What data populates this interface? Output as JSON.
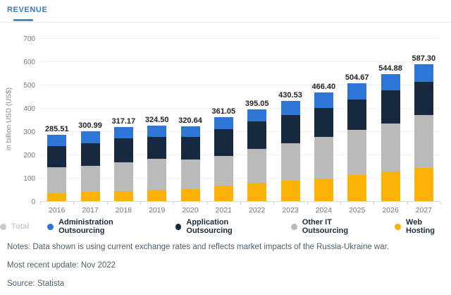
{
  "tab": {
    "label": "REVENUE"
  },
  "chart_data": {
    "type": "bar",
    "stacked": true,
    "title": "",
    "xlabel": "",
    "ylabel": "in billion USD (US$)",
    "ylim": [
      0,
      700
    ],
    "yticks": [
      0,
      100,
      200,
      300,
      400,
      500,
      600,
      700
    ],
    "grid": true,
    "legend_position": "bottom",
    "categories": [
      "2016",
      "2017",
      "2018",
      "2019",
      "2020",
      "2021",
      "2022",
      "2023",
      "2024",
      "2025",
      "2026",
      "2027"
    ],
    "totals_labels": [
      "285.51",
      "300.99",
      "317.17",
      "324.50",
      "320.64",
      "361.05",
      "395.05",
      "430.53",
      "466.40",
      "504.67",
      "544.88",
      "587.30"
    ],
    "totals": [
      285.51,
      300.99,
      317.17,
      324.5,
      320.64,
      361.05,
      395.05,
      430.53,
      466.4,
      504.67,
      544.88,
      587.3
    ],
    "series": [
      {
        "name": "Web Hosting",
        "color": "#FCB106",
        "values": [
          32,
          38,
          43,
          48,
          53,
          66,
          78,
          88,
          98,
          113,
          128,
          141
        ]
      },
      {
        "name": "Other IT Outsourcing",
        "color": "#BABABA",
        "values": [
          113,
          114,
          123,
          133,
          126,
          128,
          146,
          162,
          177,
          192,
          205,
          228
        ]
      },
      {
        "name": "Application Outsourcing",
        "color": "#16293F",
        "values": [
          92,
          98,
          103,
          94,
          97,
          114,
          117,
          121,
          126,
          131,
          142,
          143
        ]
      },
      {
        "name": "Administration Outsourcing",
        "color": "#2E75D8",
        "values": [
          48.51,
          50.99,
          48.17,
          49.5,
          44.64,
          53.05,
          54.05,
          59.53,
          65.4,
          68.67,
          69.88,
          75.3
        ]
      }
    ],
    "series_note": "segment values estimated from bar heights; totals are the printed data labels"
  },
  "legend": {
    "items": [
      {
        "label": "Total",
        "color": "#C6CBD0",
        "disabled": true
      },
      {
        "label": "Administration Outsourcing",
        "color": "#2E75D8",
        "disabled": false
      },
      {
        "label": "Application Outsourcing",
        "color": "#16293F",
        "disabled": false
      },
      {
        "label": "Other IT Outsourcing",
        "color": "#BABABA",
        "disabled": false
      },
      {
        "label": "Web Hosting",
        "color": "#FCB106",
        "disabled": false
      }
    ]
  },
  "colors": {
    "tab_text": "#3778C2",
    "tab_underline": "#3E8FD0",
    "gridline": "#EFEFEF",
    "axis_text": "#767676",
    "value_label": "#222222",
    "notes_text": "#4E5D6B"
  },
  "notes": {
    "note": "Notes: Data shown is using current exchange rates and reflects market impacts of the Russia-Ukraine war.",
    "update": "Most recent update: Nov 2022",
    "source": "Source: Statista"
  }
}
